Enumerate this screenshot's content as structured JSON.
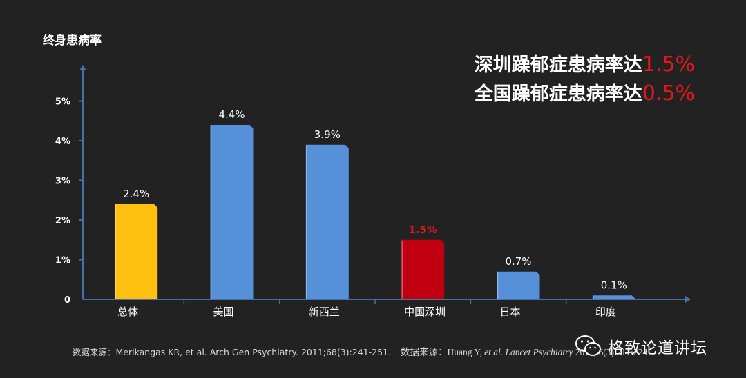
{
  "chart_data": {
    "type": "bar",
    "ylabel": "终身患病率",
    "yticks": [
      "0",
      "1%",
      "2%",
      "3%",
      "4%",
      "5%"
    ],
    "ylim": [
      0,
      5.6
    ],
    "categories": [
      "总体",
      "美国",
      "新西兰",
      "中国深圳",
      "日本",
      "印度"
    ],
    "values": [
      2.4,
      4.4,
      3.9,
      1.5,
      0.7,
      0.1
    ],
    "value_labels": [
      "2.4%",
      "4.4%",
      "3.9%",
      "1.5%",
      "0.7%",
      "0.1%"
    ],
    "bar_colors": [
      "#ffc010",
      "#5590d8",
      "#5590d8",
      "#c00010",
      "#5590d8",
      "#5590d8"
    ],
    "value_label_colors": [
      "#ffffff",
      "#ffffff",
      "#ffffff",
      "#e8161c",
      "#ffffff",
      "#ffffff"
    ],
    "axis_color": "#4a6fa8",
    "grid": false
  },
  "headline": {
    "line1_text": "深圳躁郁症患病率达",
    "line1_value": "1.5%",
    "line2_text": "全国躁郁症患病率达",
    "line2_value": "0.5%",
    "highlight_color": "#e8161c"
  },
  "source": {
    "ref1": "数据来源：Merikangas KR, et al. Arch Gen Psychiatry. 2011;68(3):241-251.",
    "ref2_prefix": "数据来源：Huang Y, ",
    "ref2_italic": "et al. Lancet Psychiatry",
    "ref2_suffix": " 2019, 6(3):211-224"
  },
  "watermark": {
    "text": "格致论道讲坛",
    "icon": "wechat-icon"
  }
}
